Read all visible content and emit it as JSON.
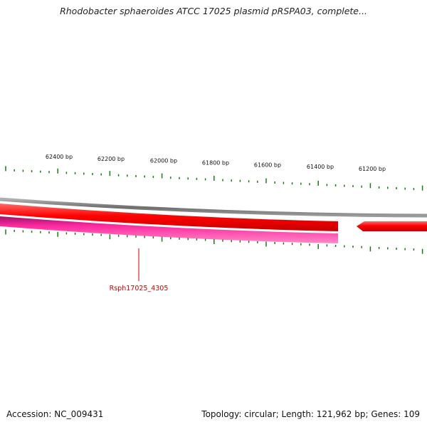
{
  "title": "Rhodobacter sphaeroides ATCC 17025 plasmid pRSPA03, complete...",
  "footer": {
    "accession": "Accession: NC_009431",
    "summary": "Topology: circular; Length: 121,962 bp; Genes: 109"
  },
  "ruler": {
    "labels": [
      "62400 bp",
      "62200 bp",
      "62000 bp",
      "61800 bp",
      "61600 bp",
      "61400 bp",
      "61200 bp"
    ],
    "tick_color": "#1a7a1a"
  },
  "genes": [
    {
      "label": "Rsph17025_4305",
      "color": "#ff2aa0",
      "strand": "reverse"
    },
    {
      "label": "",
      "color": "#e80000",
      "strand": "forward"
    },
    {
      "label": "",
      "color": "#e80000",
      "strand": "forward"
    }
  ],
  "colors": {
    "backbone": "#808080",
    "forward_gene": "#e80000",
    "reverse_gene": "#ff2aa0",
    "label": "#cc0000"
  }
}
